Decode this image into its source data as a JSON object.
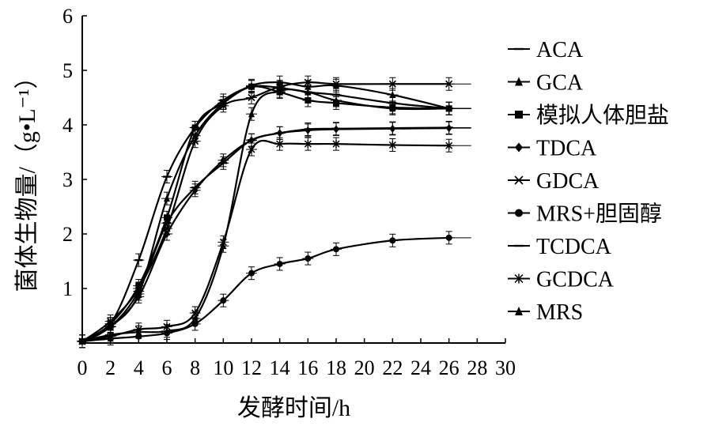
{
  "chart_data": {
    "type": "line",
    "title": "",
    "xlabel": "发酵时间/h",
    "ylabel": "菌体生物量/（g•L⁻¹）",
    "xlim": [
      0,
      30
    ],
    "ylim": [
      0,
      6
    ],
    "xticks": [
      0,
      2,
      4,
      6,
      8,
      10,
      12,
      14,
      16,
      18,
      20,
      22,
      24,
      26,
      28,
      30
    ],
    "yticks": [
      1,
      2,
      3,
      4,
      5,
      6
    ],
    "x_zero_label": "0",
    "grid": false,
    "legend_position": "right",
    "series": [
      {
        "name": "ACA",
        "marker": "dash",
        "x": [
          0,
          2,
          4,
          6,
          8,
          10,
          12,
          14,
          16,
          18,
          22,
          26
        ],
        "y": [
          0.03,
          0.35,
          1.52,
          3.05,
          3.95,
          4.45,
          4.7,
          4.68,
          4.6,
          4.55,
          4.4,
          4.3
        ]
      },
      {
        "name": "GCA",
        "marker": "triangle",
        "x": [
          0,
          2,
          4,
          6,
          8,
          10,
          12,
          14,
          16,
          18,
          22,
          26
        ],
        "y": [
          0.03,
          0.3,
          0.9,
          2.65,
          3.8,
          4.4,
          4.72,
          4.78,
          4.7,
          4.72,
          4.55,
          4.3
        ]
      },
      {
        "name": "模拟人体胆盐",
        "marker": "square",
        "x": [
          0,
          2,
          4,
          6,
          8,
          10,
          12,
          14,
          16,
          18,
          22,
          26
        ],
        "y": [
          0.03,
          0.35,
          1.05,
          2.3,
          3.95,
          4.4,
          4.7,
          4.6,
          4.45,
          4.4,
          4.32,
          4.3
        ]
      },
      {
        "name": "TDCA",
        "marker": "diamond",
        "x": [
          0,
          2,
          4,
          6,
          8,
          10,
          12,
          14,
          16,
          18,
          22,
          26
        ],
        "y": [
          0.03,
          0.3,
          0.85,
          2.0,
          2.8,
          3.35,
          3.72,
          3.85,
          3.9,
          3.92,
          3.93,
          3.94
        ]
      },
      {
        "name": "GDCA",
        "marker": "x",
        "x": [
          0,
          2,
          4,
          6,
          8,
          10,
          12,
          14,
          16,
          18,
          22,
          26
        ],
        "y": [
          0.03,
          0.4,
          1.0,
          2.1,
          3.7,
          4.35,
          4.5,
          4.7,
          4.78,
          4.75,
          4.75,
          4.75
        ]
      },
      {
        "name": "MRS+胆固醇",
        "marker": "circle",
        "x": [
          0,
          2,
          4,
          6,
          8,
          10,
          12,
          14,
          16,
          18,
          22,
          26
        ],
        "y": [
          0.03,
          0.08,
          0.12,
          0.18,
          0.35,
          0.78,
          1.28,
          1.45,
          1.55,
          1.72,
          1.88,
          1.93
        ]
      },
      {
        "name": "TCDCA",
        "marker": "dash",
        "x": [
          0,
          2,
          4,
          6,
          8,
          10,
          12,
          14,
          16,
          18,
          22,
          26
        ],
        "y": [
          0.03,
          0.3,
          0.95,
          2.2,
          2.85,
          3.3,
          3.72,
          3.85,
          3.92,
          3.93,
          3.94,
          3.95
        ]
      },
      {
        "name": "GCDCA",
        "marker": "asterisk",
        "x": [
          0,
          2,
          4,
          6,
          8,
          10,
          12,
          14,
          16,
          18,
          22,
          26
        ],
        "y": [
          0.03,
          0.12,
          0.25,
          0.3,
          0.55,
          1.85,
          3.55,
          3.65,
          3.65,
          3.65,
          3.63,
          3.62
        ]
      },
      {
        "name": "MRS",
        "marker": "triangle",
        "x": [
          0,
          2,
          4,
          6,
          8,
          10,
          12,
          14,
          16,
          18,
          22,
          26
        ],
        "y": [
          0.03,
          0.15,
          0.2,
          0.22,
          0.45,
          1.78,
          4.2,
          4.62,
          4.6,
          4.45,
          4.3,
          4.3
        ]
      }
    ]
  }
}
